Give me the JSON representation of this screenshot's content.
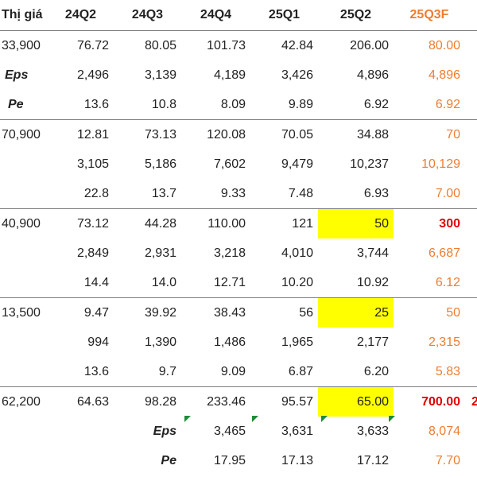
{
  "headers": [
    "Thị giá",
    "24Q2",
    "24Q3",
    "24Q4",
    "25Q1",
    "25Q2",
    "25Q3F",
    ""
  ],
  "rows": [
    [
      "33,900",
      "76.72",
      "80.05",
      "101.73",
      "42.84",
      "206.00",
      "80.00",
      ""
    ],
    [
      "Eps",
      "2,496",
      "3,139",
      "4,189",
      "3,426",
      "4,896",
      "4,896",
      ""
    ],
    [
      "Pe",
      "13.6",
      "10.8",
      "8.09",
      "9.89",
      "6.92",
      "6.92",
      ""
    ],
    [
      "70,900",
      "12.81",
      "73.13",
      "120.08",
      "70.05",
      "34.88",
      "70",
      ""
    ],
    [
      "",
      "3,105",
      "5,186",
      "7,602",
      "9,479",
      "10,237",
      "10,129",
      ""
    ],
    [
      "",
      "22.8",
      "13.7",
      "9.33",
      "7.48",
      "6.93",
      "7.00",
      ""
    ],
    [
      "40,900",
      "73.12",
      "44.28",
      "110.00",
      "121",
      "50",
      "300",
      ""
    ],
    [
      "",
      "2,849",
      "2,931",
      "3,218",
      "4,010",
      "3,744",
      "6,687",
      ""
    ],
    [
      "",
      "14.4",
      "14.0",
      "12.71",
      "10.20",
      "10.92",
      "6.12",
      ""
    ],
    [
      "13,500",
      "9.47",
      "39.92",
      "38.43",
      "56",
      "25",
      "50",
      ""
    ],
    [
      "",
      "994",
      "1,390",
      "1,486",
      "1,965",
      "2,177",
      "2,315",
      ""
    ],
    [
      "",
      "13.6",
      "9.7",
      "9.09",
      "6.87",
      "6.20",
      "5.83",
      ""
    ],
    [
      "62,200",
      "64.63",
      "98.28",
      "233.46",
      "95.57",
      "65.00",
      "700.00",
      "2"
    ],
    [
      "",
      "",
      "Eps",
      "3,465",
      "3,631",
      "3,633",
      "8,074",
      ""
    ],
    [
      "",
      "",
      "Pe",
      "17.95",
      "17.13",
      "17.12",
      "7.70",
      ""
    ]
  ],
  "colors": {
    "forecast": "#ED7D31",
    "highlight": "#FFFF00",
    "emphasis": "#E00000",
    "note_marker": "#1E8B3A"
  }
}
